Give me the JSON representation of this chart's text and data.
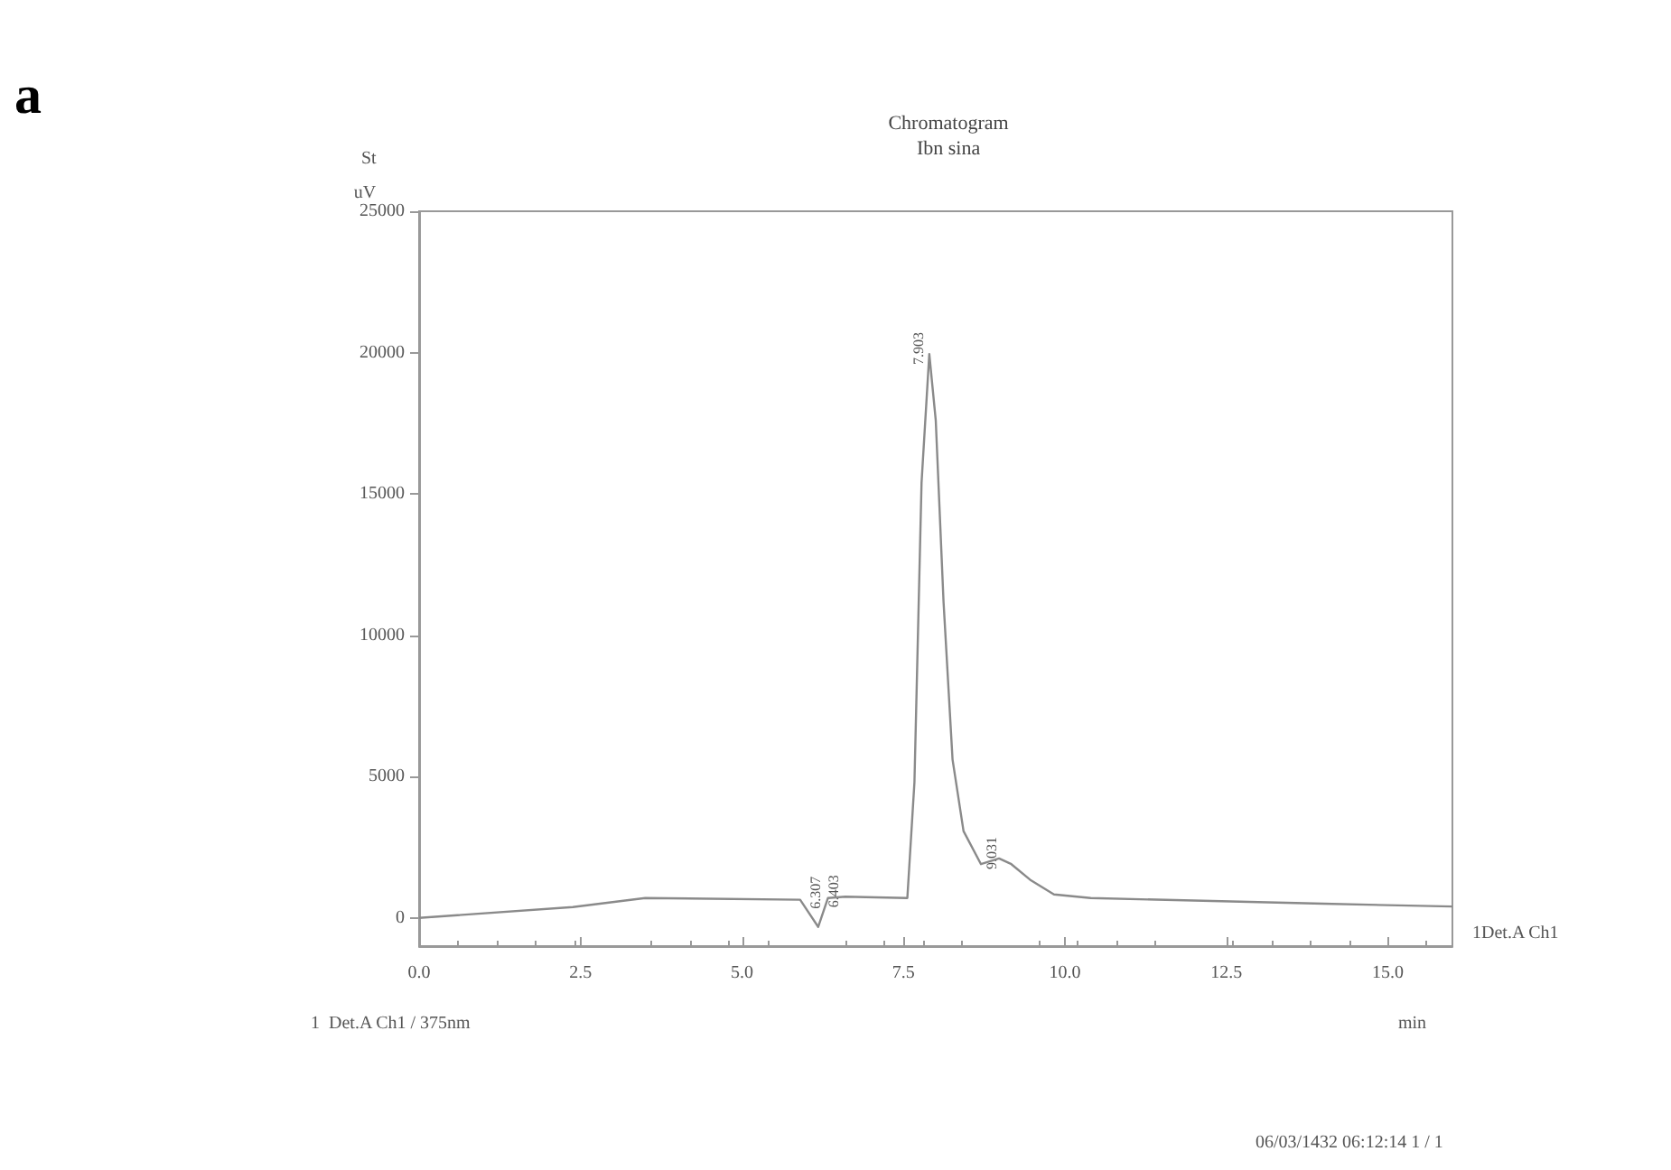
{
  "chart_data": {
    "type": "line",
    "title": "Chromatogram",
    "subtitle": "Ibn sina",
    "xlabel": "min",
    "ylabel": "uV",
    "x": [
      0,
      2.38,
      3.5,
      5.9,
      6.18,
      6.33,
      6.6,
      7.56,
      7.67,
      7.78,
      7.9,
      8.0,
      8.12,
      8.26,
      8.43,
      8.7,
      8.98,
      9.17,
      9.46,
      9.83,
      10.4,
      14.0,
      16.0
    ],
    "series": [
      {
        "color": "#8a8a8a",
        "values": [
          0,
          380,
          700,
          640,
          -320,
          700,
          750,
          700,
          4800,
          15400,
          19950,
          17600,
          11200,
          5600,
          3070,
          1900,
          2100,
          1900,
          1350,
          830,
          700,
          500,
          400
        ]
      }
    ],
    "xlim": [
      0,
      16
    ],
    "xticks": [
      {
        "value": 0,
        "label": "0.0"
      },
      {
        "value": 2.5,
        "label": "2.5"
      },
      {
        "value": 5,
        "label": "5.0"
      },
      {
        "value": 7.5,
        "label": "7.5"
      },
      {
        "value": 10,
        "label": "10.0"
      },
      {
        "value": 12.5,
        "label": "12.5"
      },
      {
        "value": 15,
        "label": "15.0"
      }
    ],
    "ylim": [
      -1000,
      25000
    ],
    "yticks": [
      0,
      5000,
      10000,
      15000,
      20000,
      25000
    ],
    "grid": false,
    "marker": "none",
    "line_style": "solid",
    "annotations": [
      {
        "text": "6.307",
        "x": 6.307,
        "y": 700
      },
      {
        "text": "6.403",
        "x": 6.403,
        "y": 750
      },
      {
        "text": "7.903",
        "x": 7.903,
        "y": 19950
      },
      {
        "text": "9.031",
        "x": 9.031,
        "y": 2100
      },
      "a",
      "St",
      "1Det.A Ch1",
      "1  Det.A Ch1 / 375nm",
      "06/03/1432 06:12:14 1 / 1"
    ]
  }
}
